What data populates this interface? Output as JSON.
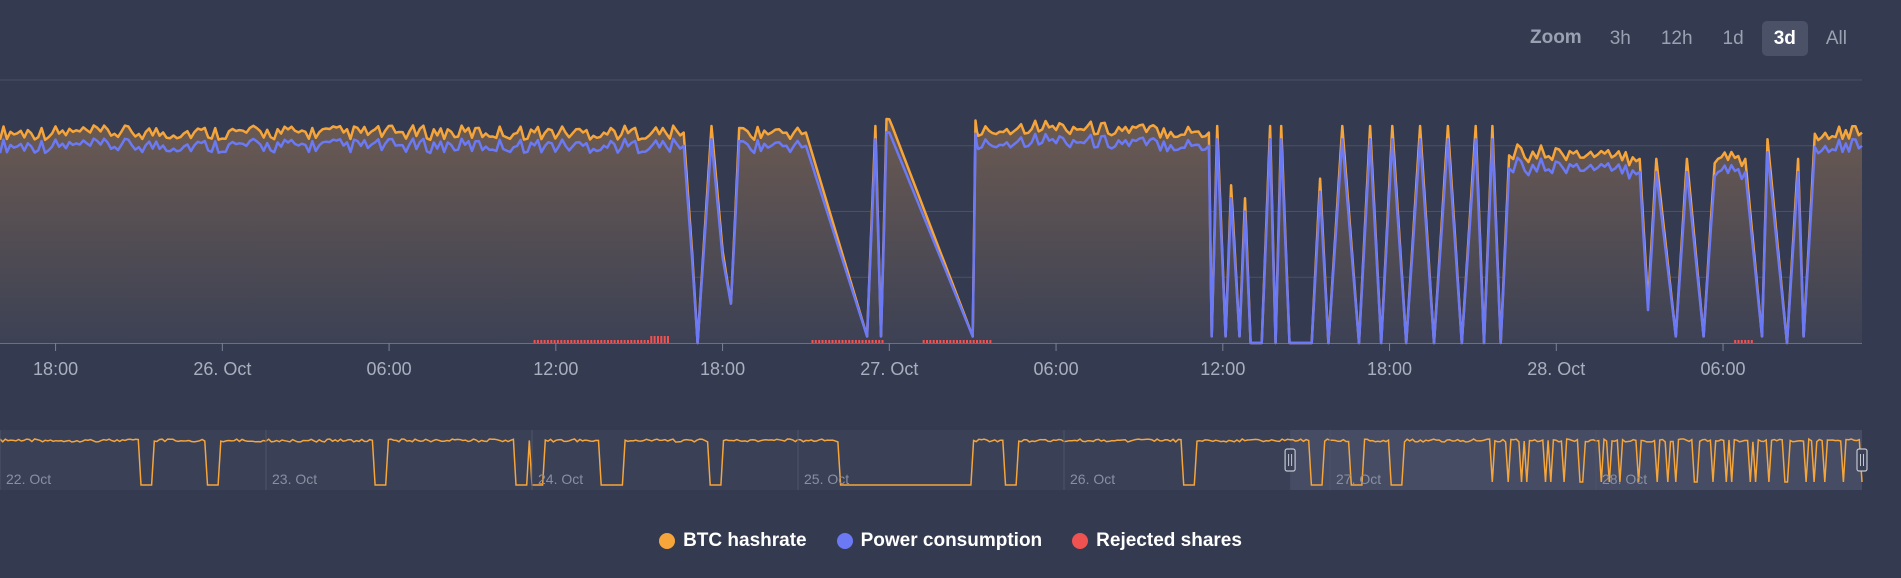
{
  "zoom": {
    "label": "Zoom",
    "buttons": [
      {
        "label": "3h",
        "active": false
      },
      {
        "label": "12h",
        "active": false
      },
      {
        "label": "1d",
        "active": false
      },
      {
        "label": "3d",
        "active": true
      },
      {
        "label": "All",
        "active": false
      }
    ]
  },
  "colors": {
    "background": "#343a4f",
    "hashrate": "#f6a53b",
    "power": "#6b79f4",
    "rejected": "#f05252",
    "grid": "#4a5066",
    "axis_text": "#a9afbf"
  },
  "legend": {
    "items": [
      {
        "label": "BTC hashrate",
        "color": "#f6a53b"
      },
      {
        "label": "Power consumption",
        "color": "#6b79f4"
      },
      {
        "label": "Rejected shares",
        "color": "#f05252"
      }
    ]
  },
  "chart_data": {
    "type": "line",
    "title": "",
    "xlabel": "",
    "ylabel": "",
    "grid": true,
    "legend_position": "bottom-center",
    "x_range": [
      "2023-10-25T16:00",
      "2023-10-28T12:00"
    ],
    "x_ticks": [
      "18:00",
      "26. Oct",
      "06:00",
      "12:00",
      "18:00",
      "27. Oct",
      "06:00",
      "12:00",
      "18:00",
      "28. Oct",
      "06:00"
    ],
    "x_tick_hours": [
      2,
      8,
      14,
      20,
      26,
      32,
      38,
      44,
      50,
      56,
      62
    ],
    "y_range": [
      0,
      4
    ],
    "series": [
      {
        "name": "BTC hashrate",
        "type": "area",
        "x_hours": [
          0,
          24.6,
          24.9,
          25.1,
          25.6,
          26,
          26.3,
          26.6,
          26.9,
          27.5,
          28.3,
          28.7,
          29,
          31.2,
          31.5,
          31.7,
          31.9,
          32.1,
          35,
          35.1,
          35.2,
          37,
          43.5,
          43.6,
          43.8,
          44.1,
          44.3,
          44.6,
          44.8,
          45,
          45.4,
          45.7,
          45.9,
          46.1,
          46.4,
          47.2,
          47.5,
          47.8,
          48.3,
          48.9,
          49.3,
          49.7,
          50.1,
          50.6,
          51.1,
          51.6,
          52.1,
          52.6,
          53.1,
          53.4,
          53.7,
          54,
          54.3,
          54.6,
          55,
          55.3,
          55.6,
          59,
          59.3,
          59.6,
          60.3,
          60.7,
          61.3,
          61.7,
          62.3,
          62.8,
          63.4,
          63.6,
          64.3,
          64.7,
          64.9,
          65.3,
          66.3,
          67
        ],
        "values": [
          3.2,
          3.2,
          1.4,
          0,
          3.3,
          1.4,
          0.6,
          3.2,
          3.2,
          3.2,
          3.2,
          3.2,
          3.2,
          0.1,
          3.3,
          0.1,
          3.3,
          3.3,
          0.1,
          3.3,
          3.2,
          3.3,
          3.2,
          0.1,
          3.3,
          0.1,
          2.4,
          0.1,
          2.2,
          0,
          0,
          3.3,
          0,
          3.3,
          0,
          0,
          2.5,
          0,
          3.3,
          0,
          3.3,
          0,
          3.3,
          0,
          3.3,
          0,
          3.3,
          0,
          3.3,
          0,
          3.3,
          0,
          2.8,
          3,
          2.8,
          2.9,
          2.9,
          2.8,
          0.6,
          2.8,
          0.1,
          2.8,
          0.1,
          2.8,
          2.8,
          2.8,
          0.1,
          3.1,
          0,
          2.8,
          0.1,
          3.1,
          3.2,
          3.2
        ]
      },
      {
        "name": "Power consumption",
        "type": "line",
        "note_offset": 0.12,
        "x_hours": [
          0,
          24.6,
          24.9,
          25.1,
          25.6,
          26,
          26.3,
          26.6,
          26.9,
          27.5,
          28.3,
          28.7,
          29,
          31.2,
          31.5,
          31.7,
          31.9,
          32.1,
          35,
          35.1,
          35.2,
          37,
          43.5,
          43.6,
          43.8,
          44.1,
          44.3,
          44.6,
          44.8,
          45,
          45.4,
          45.7,
          45.9,
          46.1,
          46.4,
          47.2,
          47.5,
          47.8,
          48.3,
          48.9,
          49.3,
          49.7,
          50.1,
          50.6,
          51.1,
          51.6,
          52.1,
          52.6,
          53.1,
          53.4,
          53.7,
          54,
          54.3,
          54.6,
          55,
          55.3,
          55.6,
          59,
          59.3,
          59.6,
          60.3,
          60.7,
          61.3,
          61.7,
          62.3,
          62.8,
          63.4,
          63.6,
          64.3,
          64.7,
          64.9,
          65.3,
          66.3,
          67
        ],
        "values": [
          3.0,
          3.0,
          1.3,
          0,
          3.1,
          1.3,
          0.6,
          3.0,
          3.0,
          3.0,
          3.0,
          3.0,
          3.0,
          0.1,
          3.1,
          0.1,
          3.1,
          3.1,
          0.1,
          3.1,
          3.0,
          3.1,
          3.0,
          0.1,
          3.1,
          0.1,
          2.2,
          0.1,
          2.0,
          0,
          0,
          3.1,
          0,
          3.1,
          0,
          0,
          2.3,
          0,
          3.1,
          0,
          3.1,
          0,
          3.1,
          0,
          3.1,
          0,
          3.1,
          0,
          3.1,
          0,
          3.1,
          0,
          2.6,
          2.8,
          2.6,
          2.7,
          2.7,
          2.6,
          0.5,
          2.6,
          0.1,
          2.6,
          0.1,
          2.6,
          2.6,
          2.6,
          0.1,
          2.9,
          0,
          2.6,
          0.1,
          2.9,
          3.0,
          3.0
        ]
      },
      {
        "name": "Rejected shares",
        "type": "bar",
        "ranges_hours": [
          [
            19.2,
            24.1
          ],
          [
            29.2,
            31.8
          ],
          [
            33.2,
            35.6
          ],
          [
            62.4,
            63.0
          ]
        ]
      }
    ],
    "navigator": {
      "x_ticks": [
        "22. Oct",
        "23. Oct",
        "24. Oct",
        "25. Oct",
        "26. Oct",
        "27. Oct",
        "28. Oct"
      ],
      "selected_range_days": [
        4.85,
        7.0
      ]
    }
  }
}
